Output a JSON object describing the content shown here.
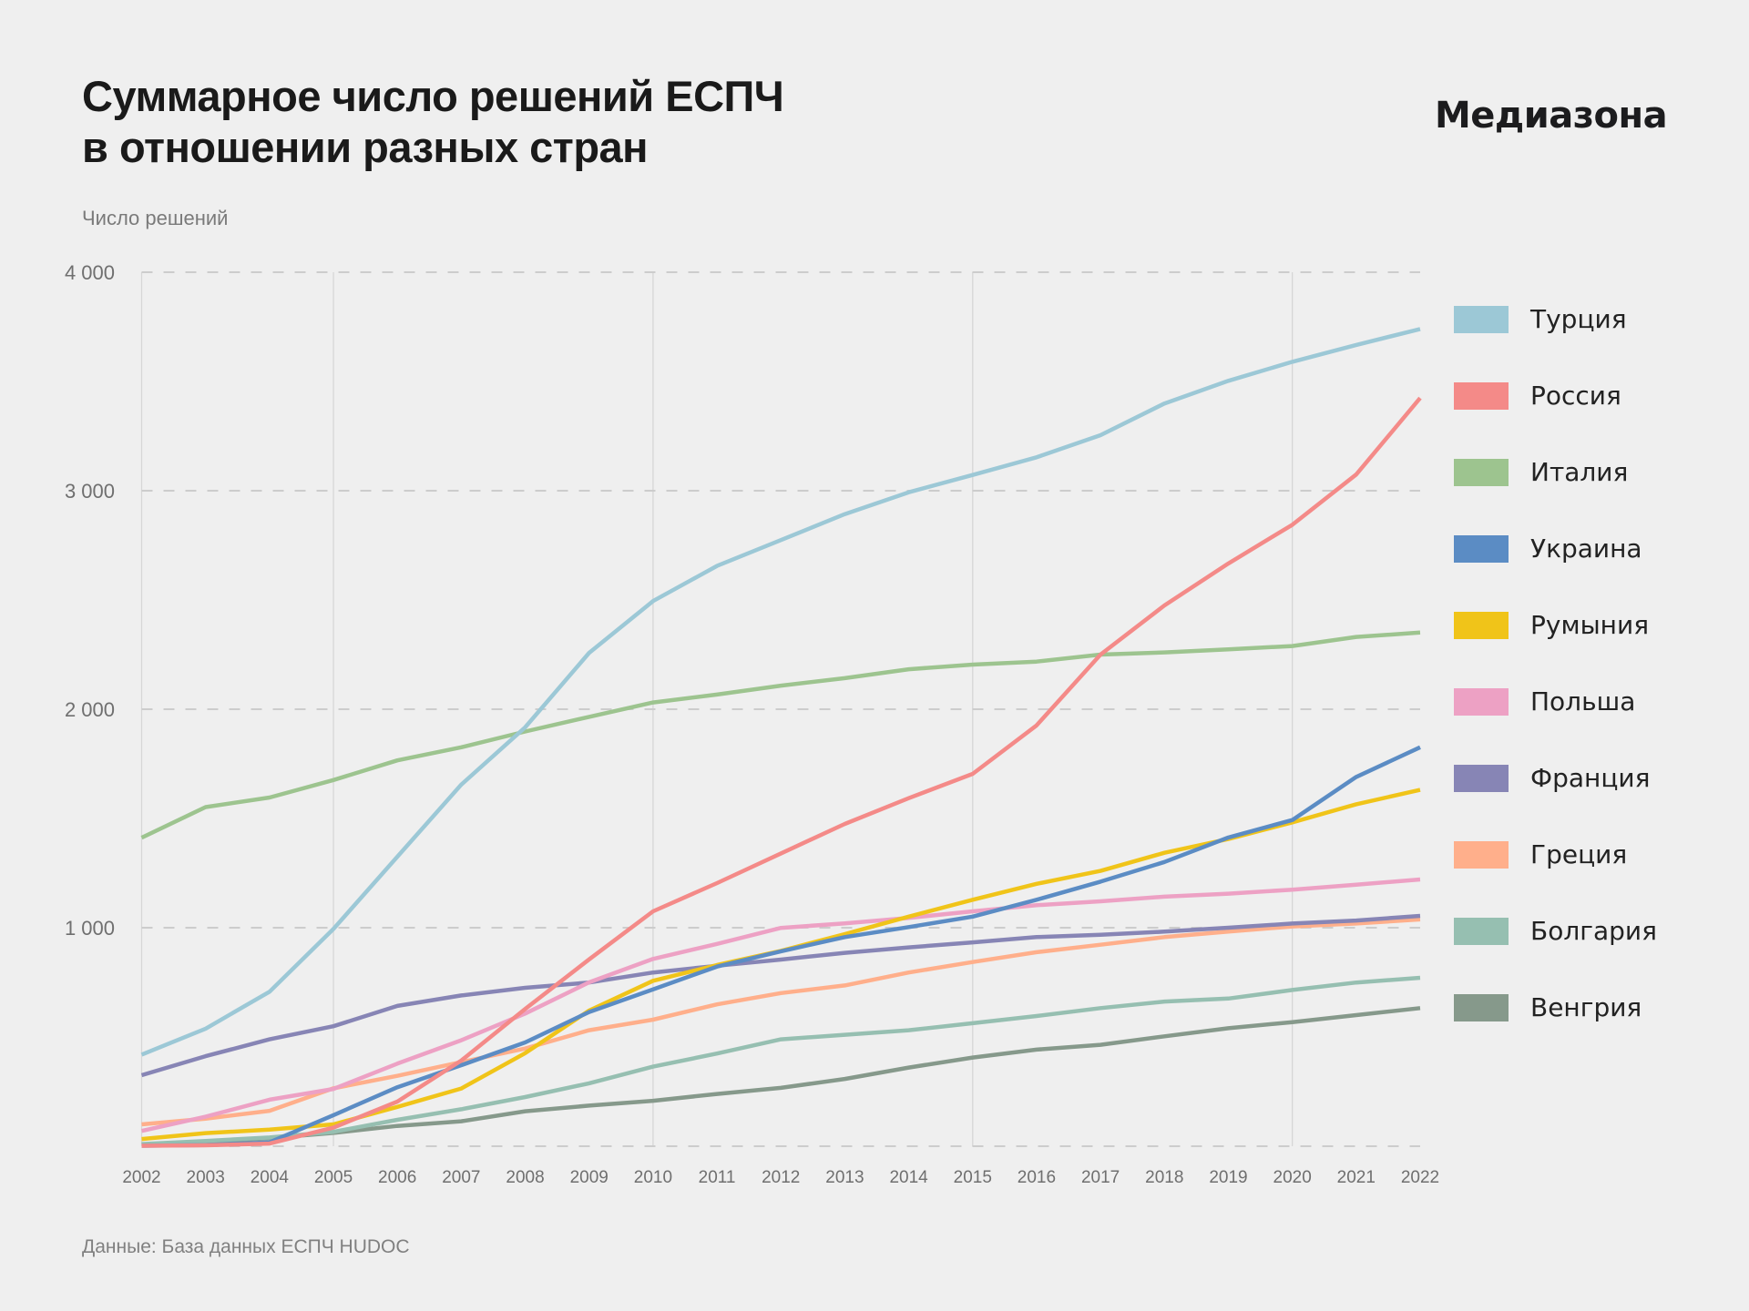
{
  "header": {
    "title_lines": [
      "Суммарное число решений ЕСПЧ",
      "в отношении разных стран"
    ],
    "logo": "Медиазона",
    "y_axis_caption": "Число решений"
  },
  "footer": {
    "source": "Данные: База данных ЕСПЧ HUDOC"
  },
  "chart_data": {
    "type": "line",
    "title": "Суммарное число решений ЕСПЧ в отношении разных стран",
    "xlabel": "",
    "ylabel": "Число решений",
    "ylim": [
      0,
      4000
    ],
    "xlim": [
      2002,
      2022
    ],
    "y_ticks": [
      {
        "value": 0,
        "label": ""
      },
      {
        "value": 1000,
        "label": "1 000"
      },
      {
        "value": 2000,
        "label": "2 000"
      },
      {
        "value": 3000,
        "label": "3 000"
      },
      {
        "value": 4000,
        "label": "4 000"
      }
    ],
    "x_vertical_grid_years": [
      2002,
      2005,
      2010,
      2015,
      2020
    ],
    "grid": true,
    "legend_position": "right",
    "x": [
      2002,
      2003,
      2004,
      2005,
      2006,
      2007,
      2008,
      2009,
      2010,
      2011,
      2012,
      2013,
      2014,
      2015,
      2016,
      2017,
      2018,
      2019,
      2020,
      2021,
      2022
    ],
    "x_tick_labels": [
      "2002",
      "2003",
      "2004",
      "2005",
      "2006",
      "2007",
      "2008",
      "2009",
      "2010",
      "2011",
      "2012",
      "2013",
      "2014",
      "2015",
      "2016",
      "2017",
      "2018",
      "2019",
      "2020",
      "2021",
      "2022"
    ],
    "series": [
      {
        "name": "Турция",
        "color": "#9CC8D6",
        "values": [
          419,
          538,
          707,
          994,
          1325,
          1655,
          1917,
          2258,
          2495,
          2656,
          2774,
          2893,
          2993,
          3072,
          3153,
          3254,
          3399,
          3503,
          3590,
          3667,
          3740
        ]
      },
      {
        "name": "Россия",
        "color": "#F48A88",
        "values": [
          2,
          4,
          12,
          85,
          204,
          392,
          628,
          855,
          1075,
          1204,
          1340,
          1475,
          1593,
          1704,
          1926,
          2250,
          2475,
          2667,
          2844,
          3074,
          3424
        ]
      },
      {
        "name": "Италия",
        "color": "#9DC48F",
        "values": [
          1412,
          1552,
          1596,
          1676,
          1766,
          1826,
          1898,
          1965,
          2031,
          2067,
          2108,
          2142,
          2183,
          2204,
          2218,
          2250,
          2260,
          2274,
          2289,
          2331,
          2351
        ]
      },
      {
        "name": "Украина",
        "color": "#5B8CC4",
        "values": [
          2,
          5,
          18,
          142,
          270,
          371,
          475,
          614,
          718,
          822,
          892,
          957,
          1003,
          1051,
          1128,
          1211,
          1301,
          1413,
          1493,
          1690,
          1826
        ]
      },
      {
        "name": "Румыния",
        "color": "#F0C419",
        "values": [
          33,
          60,
          76,
          100,
          180,
          264,
          426,
          621,
          757,
          829,
          894,
          971,
          1051,
          1128,
          1201,
          1260,
          1343,
          1406,
          1482,
          1565,
          1631
        ]
      },
      {
        "name": "Польша",
        "color": "#EDA1C4",
        "values": [
          70,
          135,
          213,
          262,
          378,
          485,
          607,
          750,
          857,
          926,
          999,
          1020,
          1045,
          1075,
          1103,
          1121,
          1142,
          1156,
          1174,
          1197,
          1221
        ]
      },
      {
        "name": "Франция",
        "color": "#8785B5",
        "values": [
          325,
          412,
          489,
          549,
          642,
          690,
          725,
          749,
          795,
          826,
          854,
          885,
          910,
          933,
          957,
          968,
          982,
          1000,
          1019,
          1033,
          1054
        ]
      },
      {
        "name": "Греция",
        "color": "#FFAF8B",
        "values": [
          100,
          126,
          162,
          265,
          322,
          385,
          447,
          531,
          579,
          649,
          701,
          736,
          795,
          843,
          888,
          922,
          957,
          982,
          1006,
          1019,
          1038
        ]
      },
      {
        "name": "Болгария",
        "color": "#96BFB1",
        "values": [
          10,
          24,
          40,
          66,
          121,
          169,
          225,
          288,
          364,
          424,
          489,
          510,
          531,
          563,
          596,
          632,
          662,
          676,
          715,
          749,
          771
        ]
      },
      {
        "name": "Венгрия",
        "color": "#86998B",
        "values": [
          7,
          20,
          37,
          61,
          93,
          114,
          160,
          186,
          208,
          239,
          267,
          308,
          360,
          406,
          442,
          464,
          503,
          540,
          568,
          600,
          632
        ]
      }
    ]
  }
}
